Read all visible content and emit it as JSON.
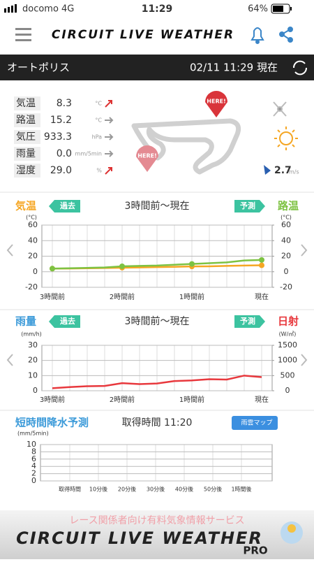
{
  "status": {
    "carrier": "docomo",
    "network": "4G",
    "time": "11:29",
    "battery": "64%"
  },
  "header": {
    "title": "CIRCUIT LIVE WEATHER"
  },
  "location": {
    "name": "オートポリス",
    "time": "02/11 11:29 現在"
  },
  "weather": {
    "rows": [
      {
        "label": "気温",
        "value": "8.3",
        "unit": "°C"
      },
      {
        "label": "路温",
        "value": "15.2",
        "unit": "°C"
      },
      {
        "label": "気圧",
        "value": "933.3",
        "unit": "hPa"
      },
      {
        "label": "雨量",
        "value": "0.0",
        "unit": "mm/5min"
      },
      {
        "label": "湿度",
        "value": "29.0",
        "unit": "%"
      }
    ],
    "markers": [
      "HERE!",
      "HERE!"
    ],
    "wind": {
      "value": "2.7",
      "unit": "m/s"
    }
  },
  "chart_data": [
    {
      "type": "line",
      "title": "3時間前〜現在",
      "past_button": "過去",
      "forecast_button": "予測",
      "ylabel": "(°C)",
      "y2label": "(°C)",
      "categories": [
        "3時間前",
        null,
        null,
        null,
        "2時間前",
        null,
        null,
        null,
        "1時間前",
        null,
        null,
        null,
        "現在"
      ],
      "series": [
        {
          "name": "気温",
          "color": "#f5a623",
          "values": [
            4,
            4.2,
            4.5,
            4.8,
            5.2,
            5.5,
            6,
            6.3,
            6.8,
            7,
            7.5,
            8,
            8.3
          ]
        },
        {
          "name": "路温",
          "color": "#7dc242",
          "axis": "y2",
          "values": [
            4,
            4.5,
            5,
            5.5,
            7,
            7.5,
            8,
            9,
            10,
            11,
            12,
            14.5,
            15.2
          ]
        }
      ],
      "ylim": [
        -20,
        60
      ],
      "yticks": [
        -20,
        0,
        20,
        40,
        60
      ],
      "y2lim": [
        -20,
        60
      ],
      "y2ticks": [
        -20,
        0,
        20,
        40,
        60
      ],
      "grid": true
    },
    {
      "type": "line",
      "left_label": "雨量",
      "title": "3時間前〜現在",
      "past_button": "過去",
      "forecast_button": "予測",
      "ylabel": "(mm/h)",
      "y2label": "(W/㎡)",
      "categories": [
        "3時間前",
        null,
        null,
        null,
        "2時間前",
        null,
        null,
        null,
        "1時間前",
        null,
        null,
        null,
        "現在"
      ],
      "series": [
        {
          "name": "日射",
          "color": "#e8383d",
          "axis": "y2",
          "values": [
            85,
            120,
            150,
            160,
            250,
            220,
            240,
            320,
            340,
            380,
            370,
            500,
            450
          ]
        }
      ],
      "ylim": [
        0,
        30
      ],
      "yticks": [
        0,
        10,
        20,
        30
      ],
      "y2lim": [
        0,
        1500
      ],
      "y2ticks": [
        0,
        500,
        1000,
        1500
      ],
      "grid": true
    },
    {
      "type": "bar",
      "title": "短時間降水予測",
      "time_label": "取得時間 11:20",
      "button": "雨雲マップ",
      "ylabel": "(mm/5min)",
      "categories": [
        "取得時間",
        "10分後",
        "20分後",
        "30分後",
        "40分後",
        "50分後",
        "1時間後"
      ],
      "ylim": [
        0,
        10
      ],
      "yticks": [
        0,
        2,
        4,
        6,
        8,
        10
      ],
      "grid": true
    }
  ],
  "footer": {
    "tagline": "レース関係者向け有料気象情報サービス",
    "logo": "CIRCUIT LIVE WEATHER",
    "badge": "PRO"
  }
}
